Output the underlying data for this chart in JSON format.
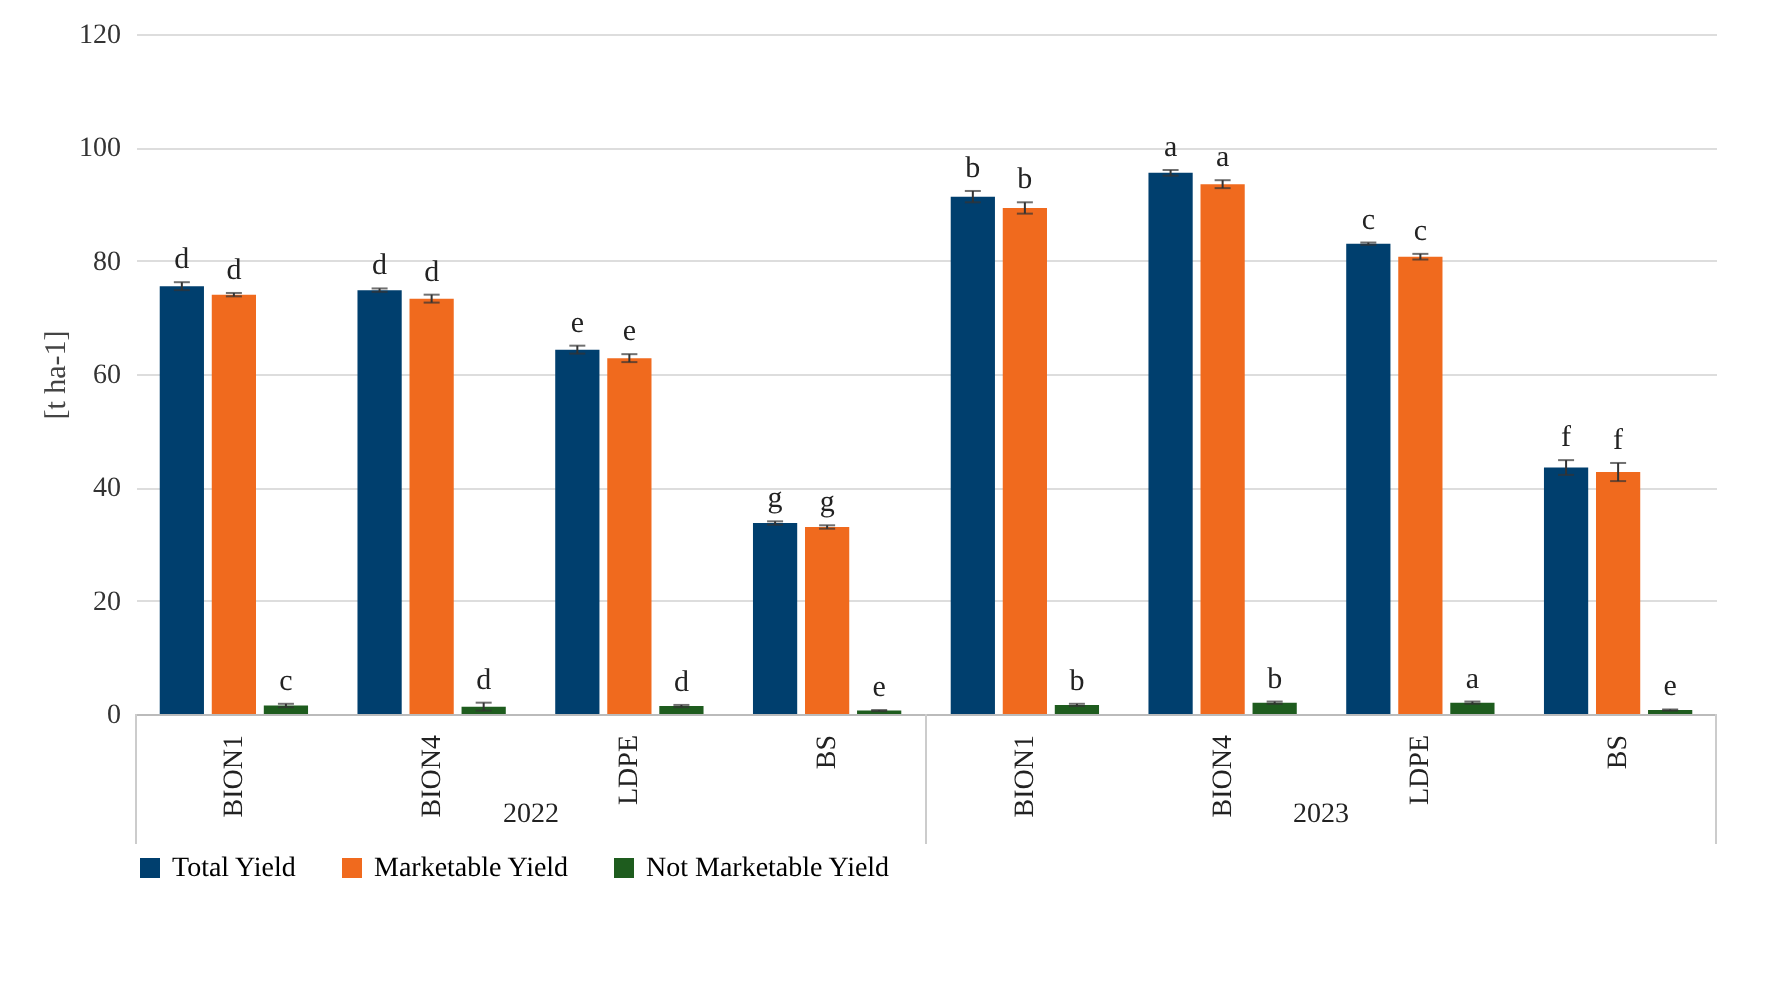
{
  "chart_data": {
    "type": "bar",
    "ylabel": "[t ha-1]",
    "categories": [
      "BION1",
      "BION4",
      "LDPE",
      "BS",
      "BION1",
      "BION4",
      "LDPE",
      "BS"
    ],
    "annotations": [
      "2022",
      "2023"
    ],
    "ylim": [
      0,
      120
    ],
    "yticks": [
      0,
      20,
      40,
      60,
      80,
      100,
      120
    ],
    "grid": "y",
    "legend": "bottom",
    "series": [
      {
        "name": "Total Yield",
        "color": "#003f6e",
        "values": [
          75.5,
          74.8,
          64.3,
          33.7,
          91.3,
          95.5,
          83.0,
          43.5
        ],
        "errors": [
          0.7,
          0.3,
          0.7,
          0.3,
          1.0,
          0.5,
          0.2,
          1.3
        ],
        "value_labels": [
          "d",
          "d",
          "e",
          "g",
          "b",
          "a",
          "c",
          "f"
        ]
      },
      {
        "name": "Marketable Yield",
        "color": "#f06a1e",
        "values": [
          74.0,
          73.3,
          62.8,
          33.0,
          89.3,
          93.5,
          80.7,
          42.7
        ],
        "errors": [
          0.3,
          0.7,
          0.7,
          0.3,
          1.0,
          0.7,
          0.5,
          1.6
        ],
        "value_labels": [
          "d",
          "d",
          "e",
          "g",
          "b",
          "a",
          "c",
          "f"
        ]
      },
      {
        "name": "Not Marketable Yield",
        "color": "#1e5c1e",
        "values": [
          1.5,
          1.3,
          1.4,
          0.6,
          1.6,
          2.0,
          2.0,
          0.7
        ],
        "errors": [
          0.3,
          0.7,
          0.2,
          0.1,
          0.2,
          0.2,
          0.2,
          0.1
        ],
        "value_labels": [
          "c",
          "d",
          "d",
          "e",
          "b",
          "b",
          "a",
          "e"
        ]
      }
    ]
  }
}
